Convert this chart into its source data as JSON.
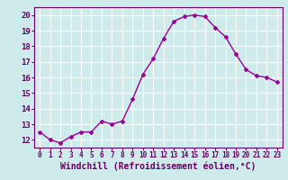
{
  "x": [
    0,
    1,
    2,
    3,
    4,
    5,
    6,
    7,
    8,
    9,
    10,
    11,
    12,
    13,
    14,
    15,
    16,
    17,
    18,
    19,
    20,
    21,
    22,
    23
  ],
  "y": [
    12.5,
    12.0,
    11.8,
    12.2,
    12.5,
    12.5,
    13.2,
    13.0,
    13.2,
    14.6,
    16.2,
    17.2,
    18.5,
    19.6,
    19.9,
    20.0,
    19.9,
    19.2,
    18.6,
    17.5,
    16.5,
    16.1,
    16.0,
    15.7
  ],
  "line_color": "#990099",
  "marker": "D",
  "markersize": 2.0,
  "linewidth": 1.0,
  "xlabel": "Windchill (Refroidissement éolien,°C)",
  "xlabel_fontsize": 7,
  "xlabel_color": "#660066",
  "xlabel_fontweight": "bold",
  "xtick_labels": [
    "0",
    "1",
    "2",
    "3",
    "4",
    "5",
    "6",
    "7",
    "8",
    "9",
    "10",
    "11",
    "12",
    "13",
    "14",
    "15",
    "16",
    "17",
    "18",
    "19",
    "20",
    "21",
    "22",
    "23"
  ],
  "xtick_fontsize": 5.5,
  "ytick_fontsize": 6.5,
  "ylim": [
    11.5,
    20.5
  ],
  "yticks": [
    12,
    13,
    14,
    15,
    16,
    17,
    18,
    19,
    20
  ],
  "xlim": [
    -0.5,
    23.5
  ],
  "background_color": "#ceeaea",
  "grid_color": "#ffffff",
  "tick_color": "#660066",
  "spine_color": "#660066"
}
